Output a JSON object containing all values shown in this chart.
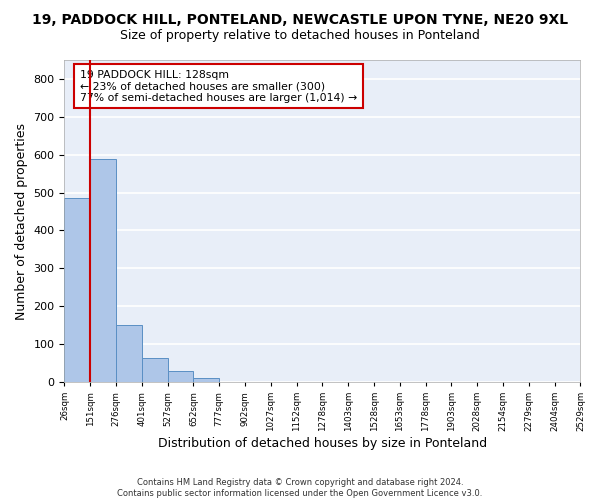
{
  "title": "19, PADDOCK HILL, PONTELAND, NEWCASTLE UPON TYNE, NE20 9XL",
  "subtitle": "Size of property relative to detached houses in Ponteland",
  "xlabel": "Distribution of detached houses by size in Ponteland",
  "ylabel": "Number of detached properties",
  "bar_values": [
    485,
    590,
    150,
    63,
    29,
    10,
    0,
    0,
    0,
    0,
    0,
    0,
    0,
    0,
    0,
    0,
    0,
    0,
    0,
    0
  ],
  "bar_color": "#aec6e8",
  "bar_edge_color": "#5a8fc4",
  "tick_labels": [
    "26sqm",
    "151sqm",
    "276sqm",
    "401sqm",
    "527sqm",
    "652sqm",
    "777sqm",
    "902sqm",
    "1027sqm",
    "1152sqm",
    "1278sqm",
    "1403sqm",
    "1528sqm",
    "1653sqm",
    "1778sqm",
    "1903sqm",
    "2028sqm",
    "2154sqm",
    "2279sqm",
    "2404sqm",
    "2529sqm"
  ],
  "ylim": [
    0,
    850
  ],
  "yticks": [
    0,
    100,
    200,
    300,
    400,
    500,
    600,
    700,
    800
  ],
  "property_line_x": 0.5,
  "property_line_color": "#cc0000",
  "annotation_box_text": "19 PADDOCK HILL: 128sqm\n← 23% of detached houses are smaller (300)\n77% of semi-detached houses are larger (1,014) →",
  "annotation_box_color": "#cc0000",
  "annotation_box_bg": "#ffffff",
  "footer_line1": "Contains HM Land Registry data © Crown copyright and database right 2024.",
  "footer_line2": "Contains public sector information licensed under the Open Government Licence v3.0.",
  "background_color": "#e8eef8",
  "grid_color": "#ffffff",
  "title_fontsize": 10,
  "subtitle_fontsize": 9,
  "axis_label_fontsize": 9
}
